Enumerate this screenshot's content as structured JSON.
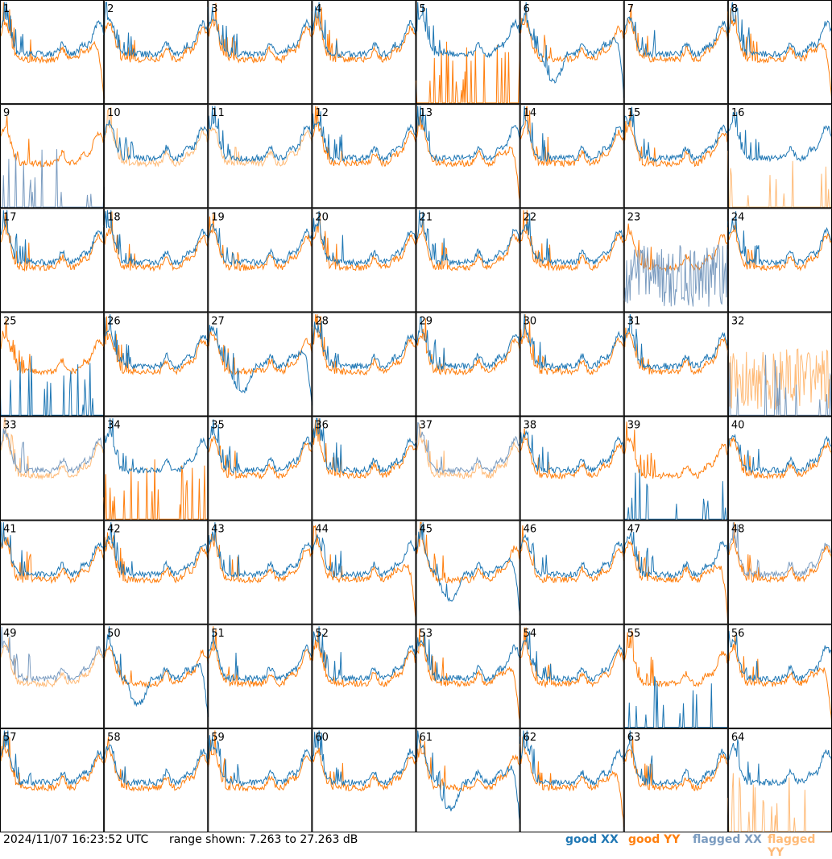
{
  "footer": {
    "timestamp": "2024/11/07 16:23:52 UTC",
    "range": "range shown: 7.263 to 27.263 dB"
  },
  "legend": [
    {
      "label": "good XX",
      "color": "#1f77b4"
    },
    {
      "label": "good YY",
      "color": "#ff7f0e"
    },
    {
      "label": "flagged XX",
      "color": "#7b9cc0"
    },
    {
      "label": "flagged YY",
      "color": "#ffbb78"
    }
  ],
  "chart_data": {
    "type": "line",
    "grid": "8x8 small multiples",
    "ylim": [
      7.263,
      27.263
    ],
    "ylabel": "dB",
    "panels": [
      {
        "id": "1",
        "xx": "good",
        "yy": "good",
        "xx_style": "typical",
        "yy_style": "dropoff"
      },
      {
        "id": "2",
        "xx": "good",
        "yy": "good",
        "xx_style": "typical",
        "yy_style": "typical"
      },
      {
        "id": "3",
        "xx": "good",
        "yy": "good",
        "xx_style": "typical",
        "yy_style": "typical"
      },
      {
        "id": "4",
        "xx": "good",
        "yy": "good",
        "xx_style": "typical",
        "yy_style": "typical"
      },
      {
        "id": "5",
        "xx": "good",
        "yy": "good",
        "xx_style": "typical",
        "yy_style": "spike"
      },
      {
        "id": "6",
        "xx": "good",
        "yy": "good",
        "xx_style": "dropoff",
        "yy_style": "typical"
      },
      {
        "id": "7",
        "xx": "good",
        "yy": "good",
        "xx_style": "typical",
        "yy_style": "typical"
      },
      {
        "id": "8",
        "xx": "good",
        "yy": "good",
        "xx_style": "typical",
        "yy_style": "dropoff"
      },
      {
        "id": "9",
        "xx": "flagged",
        "yy": "good",
        "xx_style": "spike",
        "yy_style": "typical"
      },
      {
        "id": "10",
        "xx": "good",
        "yy": "flagged",
        "xx_style": "typical",
        "yy_style": "typical"
      },
      {
        "id": "11",
        "xx": "good",
        "yy": "flagged",
        "xx_style": "typical",
        "yy_style": "typical"
      },
      {
        "id": "12",
        "xx": "good",
        "yy": "good",
        "xx_style": "typical",
        "yy_style": "typical"
      },
      {
        "id": "13",
        "xx": "good",
        "yy": "good",
        "xx_style": "typical",
        "yy_style": "dropoff"
      },
      {
        "id": "14",
        "xx": "good",
        "yy": "good",
        "xx_style": "typical",
        "yy_style": "typical"
      },
      {
        "id": "15",
        "xx": "good",
        "yy": "good",
        "xx_style": "typical",
        "yy_style": "typical"
      },
      {
        "id": "16",
        "xx": "good",
        "yy": "flagged",
        "xx_style": "typical",
        "yy_style": "spike"
      },
      {
        "id": "17",
        "xx": "good",
        "yy": "good",
        "xx_style": "typical",
        "yy_style": "typical"
      },
      {
        "id": "18",
        "xx": "good",
        "yy": "good",
        "xx_style": "typical",
        "yy_style": "typical"
      },
      {
        "id": "19",
        "xx": "good",
        "yy": "good",
        "xx_style": "typical",
        "yy_style": "typical"
      },
      {
        "id": "20",
        "xx": "good",
        "yy": "good",
        "xx_style": "typical",
        "yy_style": "typical"
      },
      {
        "id": "21",
        "xx": "good",
        "yy": "good",
        "xx_style": "typical",
        "yy_style": "typical"
      },
      {
        "id": "22",
        "xx": "good",
        "yy": "good",
        "xx_style": "typical",
        "yy_style": "typical"
      },
      {
        "id": "23",
        "xx": "flagged",
        "yy": "good",
        "xx_style": "noise",
        "yy_style": "typical"
      },
      {
        "id": "24",
        "xx": "good",
        "yy": "good",
        "xx_style": "typical",
        "yy_style": "typical"
      },
      {
        "id": "25",
        "xx": "good",
        "yy": "good",
        "xx_style": "spike",
        "yy_style": "typical"
      },
      {
        "id": "26",
        "xx": "good",
        "yy": "good",
        "xx_style": "typical",
        "yy_style": "typical"
      },
      {
        "id": "27",
        "xx": "good",
        "yy": "good",
        "xx_style": "dropoff",
        "yy_style": "typical"
      },
      {
        "id": "28",
        "xx": "good",
        "yy": "good",
        "xx_style": "typical",
        "yy_style": "typical"
      },
      {
        "id": "29",
        "xx": "good",
        "yy": "good",
        "xx_style": "typical",
        "yy_style": "typical"
      },
      {
        "id": "30",
        "xx": "good",
        "yy": "good",
        "xx_style": "typical",
        "yy_style": "typical"
      },
      {
        "id": "31",
        "xx": "good",
        "yy": "good",
        "xx_style": "typical",
        "yy_style": "typical"
      },
      {
        "id": "32",
        "xx": "flagged",
        "yy": "flagged",
        "xx_style": "spike",
        "yy_style": "noise"
      },
      {
        "id": "33",
        "xx": "flagged",
        "yy": "flagged",
        "xx_style": "typical",
        "yy_style": "typical"
      },
      {
        "id": "34",
        "xx": "good",
        "yy": "good",
        "xx_style": "typical",
        "yy_style": "spike"
      },
      {
        "id": "35",
        "xx": "good",
        "yy": "good",
        "xx_style": "typical",
        "yy_style": "typical"
      },
      {
        "id": "36",
        "xx": "good",
        "yy": "good",
        "xx_style": "typical",
        "yy_style": "typical"
      },
      {
        "id": "37",
        "xx": "flagged",
        "yy": "flagged",
        "xx_style": "typical",
        "yy_style": "typical"
      },
      {
        "id": "38",
        "xx": "good",
        "yy": "good",
        "xx_style": "typical",
        "yy_style": "typical"
      },
      {
        "id": "39",
        "xx": "good",
        "yy": "good",
        "xx_style": "spike",
        "yy_style": "typical"
      },
      {
        "id": "40",
        "xx": "good",
        "yy": "good",
        "xx_style": "typical",
        "yy_style": "typical"
      },
      {
        "id": "41",
        "xx": "good",
        "yy": "good",
        "xx_style": "typical",
        "yy_style": "typical"
      },
      {
        "id": "42",
        "xx": "good",
        "yy": "good",
        "xx_style": "typical",
        "yy_style": "typical"
      },
      {
        "id": "43",
        "xx": "good",
        "yy": "good",
        "xx_style": "typical",
        "yy_style": "typical"
      },
      {
        "id": "44",
        "xx": "good",
        "yy": "good",
        "xx_style": "typical",
        "yy_style": "dropoff"
      },
      {
        "id": "45",
        "xx": "good",
        "yy": "good",
        "xx_style": "dropoff",
        "yy_style": "typical"
      },
      {
        "id": "46",
        "xx": "good",
        "yy": "good",
        "xx_style": "typical",
        "yy_style": "typical"
      },
      {
        "id": "47",
        "xx": "good",
        "yy": "good",
        "xx_style": "typical",
        "yy_style": "dropoff"
      },
      {
        "id": "48",
        "xx": "flagged",
        "yy": "good",
        "xx_style": "typical",
        "yy_style": "typical"
      },
      {
        "id": "49",
        "xx": "flagged",
        "yy": "flagged",
        "xx_style": "typical",
        "yy_style": "typical"
      },
      {
        "id": "50",
        "xx": "good",
        "yy": "good",
        "xx_style": "dropoff",
        "yy_style": "typical"
      },
      {
        "id": "51",
        "xx": "good",
        "yy": "good",
        "xx_style": "typical",
        "yy_style": "typical"
      },
      {
        "id": "52",
        "xx": "good",
        "yy": "good",
        "xx_style": "typical",
        "yy_style": "typical"
      },
      {
        "id": "53",
        "xx": "good",
        "yy": "good",
        "xx_style": "typical",
        "yy_style": "dropoff"
      },
      {
        "id": "54",
        "xx": "good",
        "yy": "good",
        "xx_style": "typical",
        "yy_style": "typical"
      },
      {
        "id": "55",
        "xx": "good",
        "yy": "good",
        "xx_style": "spike",
        "yy_style": "typical"
      },
      {
        "id": "56",
        "xx": "good",
        "yy": "good",
        "xx_style": "typical",
        "yy_style": "dropoff"
      },
      {
        "id": "57",
        "xx": "good",
        "yy": "good",
        "xx_style": "typical",
        "yy_style": "typical"
      },
      {
        "id": "58",
        "xx": "good",
        "yy": "good",
        "xx_style": "typical",
        "yy_style": "typical"
      },
      {
        "id": "59",
        "xx": "good",
        "yy": "good",
        "xx_style": "typical",
        "yy_style": "typical"
      },
      {
        "id": "60",
        "xx": "good",
        "yy": "good",
        "xx_style": "typical",
        "yy_style": "typical"
      },
      {
        "id": "61",
        "xx": "good",
        "yy": "good",
        "xx_style": "dropoff",
        "yy_style": "typical"
      },
      {
        "id": "62",
        "xx": "good",
        "yy": "good",
        "xx_style": "typical",
        "yy_style": "dropoff"
      },
      {
        "id": "63",
        "xx": "good",
        "yy": "good",
        "xx_style": "typical",
        "yy_style": "typical"
      },
      {
        "id": "64",
        "xx": "good",
        "yy": "flagged",
        "xx_style": "typical",
        "yy_style": "spike"
      }
    ]
  }
}
